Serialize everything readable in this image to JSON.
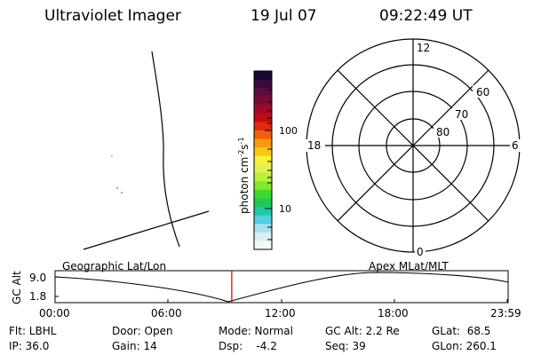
{
  "header": {
    "instrument": "Ultraviolet Imager",
    "date": "19 Jul 07",
    "time": "09:22:49 UT"
  },
  "colorbar": {
    "unit_label": "photon cm",
    "unit_exp1": "-2",
    "unit_s": "s",
    "unit_exp2": "-1",
    "tick_labels": [
      "100",
      "10"
    ],
    "colors": [
      "#1a0830",
      "#3a0b3f",
      "#5a0d3e",
      "#7a0c30",
      "#a00a22",
      "#c40a16",
      "#e22a10",
      "#f0600a",
      "#f79a0a",
      "#f7c810",
      "#f5f238",
      "#e0f050",
      "#b8f03a",
      "#80e82a",
      "#40d82a",
      "#20c85a",
      "#20c8a8",
      "#50d0e0",
      "#a8e0ec",
      "#dcecf0",
      "#f4f8f8"
    ]
  },
  "polar": {
    "lat_labels": [
      "60",
      "70",
      "80"
    ],
    "mlt_labels": {
      "top": "12",
      "left": "18",
      "right": "6",
      "bottom": "0"
    }
  },
  "timeline": {
    "y_axis_label": "GC Alt",
    "y_ticks": [
      "9.0",
      "1.8"
    ],
    "left_title": "Geographic Lat/Lon",
    "right_title": "Apex MLat/MLT",
    "time_ticks": [
      "00:00",
      "06:00",
      "12:00",
      "18:00",
      "23:59"
    ],
    "current_fraction": 0.39,
    "marker_color": "#cc0000"
  },
  "status": {
    "flt": "Flt: LBHL",
    "ip": "IP: 36.0",
    "door": "Door: Open",
    "gain": "Gain: 14",
    "mode": "Mode: Normal",
    "dsp": "Dsp:    -4.2",
    "gcalt": "GC Alt: 2.2 Re",
    "seq": "Seq: 39",
    "glat": "GLat:  68.5",
    "glon": "GLon: 260.1"
  }
}
